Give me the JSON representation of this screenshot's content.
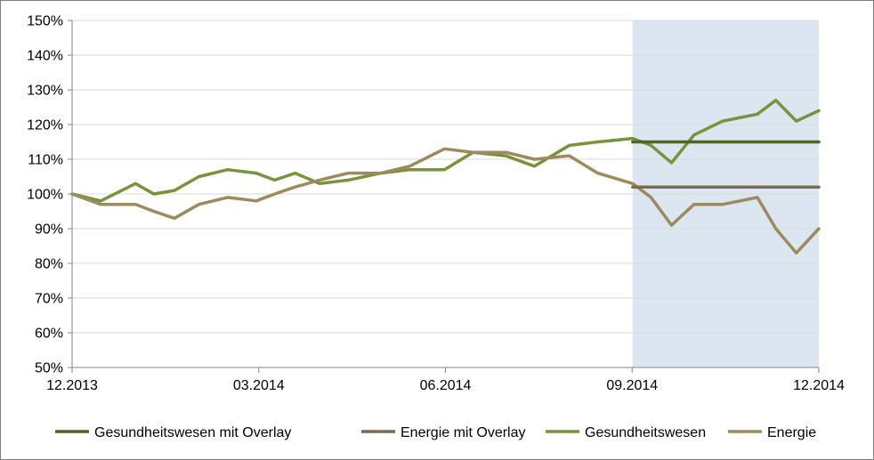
{
  "chart_data": {
    "type": "line",
    "title": "",
    "xlabel": "",
    "ylabel": "",
    "x_ticks": [
      "12.2013",
      "03.2014",
      "06.2014",
      "09.2014",
      "12.2014"
    ],
    "y_ticks": [
      "50%",
      "60%",
      "70%",
      "80%",
      "90%",
      "100%",
      "110%",
      "120%",
      "130%",
      "140%",
      "150%"
    ],
    "ylim": [
      50,
      150
    ],
    "xlim": [
      "2013-12",
      "2014-12"
    ],
    "grid": "horizontal",
    "legend_position": "bottom",
    "highlight_region": {
      "from": "2014-09",
      "to": "2014-12",
      "color": "#dce6f1"
    },
    "series": [
      {
        "name": "Gesundheitswesen mit Overlay",
        "color": "#4f6228",
        "x": [
          "2014-09",
          "2014-12"
        ],
        "values": [
          115,
          115
        ]
      },
      {
        "name": "Energie mit Overlay",
        "color": "#7a6b4b",
        "x": [
          "2014-09",
          "2014-12"
        ],
        "values": [
          102,
          102
        ]
      },
      {
        "name": "Gesundheitswesen",
        "color": "#77933c",
        "x": [
          "2013-12-01",
          "2013-12-15",
          "2014-01-01",
          "2014-01-10",
          "2014-01-20",
          "2014-02-01",
          "2014-02-15",
          "2014-03-01",
          "2014-03-10",
          "2014-03-20",
          "2014-04-01",
          "2014-04-15",
          "2014-05-01",
          "2014-05-15",
          "2014-06-01",
          "2014-06-15",
          "2014-07-01",
          "2014-07-15",
          "2014-08-01",
          "2014-08-15",
          "2014-09-01",
          "2014-09-10",
          "2014-09-20",
          "2014-10-01",
          "2014-10-15",
          "2014-11-01",
          "2014-11-10",
          "2014-11-20",
          "2014-12-01"
        ],
        "values": [
          100,
          98,
          103,
          100,
          101,
          105,
          107,
          106,
          104,
          106,
          103,
          104,
          106,
          107,
          107,
          112,
          111,
          108,
          114,
          115,
          116,
          114,
          109,
          117,
          121,
          123,
          127,
          121,
          124
        ]
      },
      {
        "name": "Energie",
        "color": "#9b8b5e",
        "x": [
          "2013-12-01",
          "2013-12-15",
          "2014-01-01",
          "2014-01-10",
          "2014-01-20",
          "2014-02-01",
          "2014-02-15",
          "2014-03-01",
          "2014-03-10",
          "2014-03-20",
          "2014-04-01",
          "2014-04-15",
          "2014-05-01",
          "2014-05-15",
          "2014-06-01",
          "2014-06-15",
          "2014-07-01",
          "2014-07-15",
          "2014-08-01",
          "2014-08-15",
          "2014-09-01",
          "2014-09-10",
          "2014-09-20",
          "2014-10-01",
          "2014-10-15",
          "2014-11-01",
          "2014-11-10",
          "2014-11-20",
          "2014-12-01"
        ],
        "values": [
          100,
          97,
          97,
          95,
          93,
          97,
          99,
          98,
          100,
          102,
          104,
          106,
          106,
          108,
          113,
          112,
          112,
          110,
          111,
          106,
          103,
          99,
          91,
          97,
          97,
          99,
          90,
          83,
          90
        ]
      }
    ]
  }
}
